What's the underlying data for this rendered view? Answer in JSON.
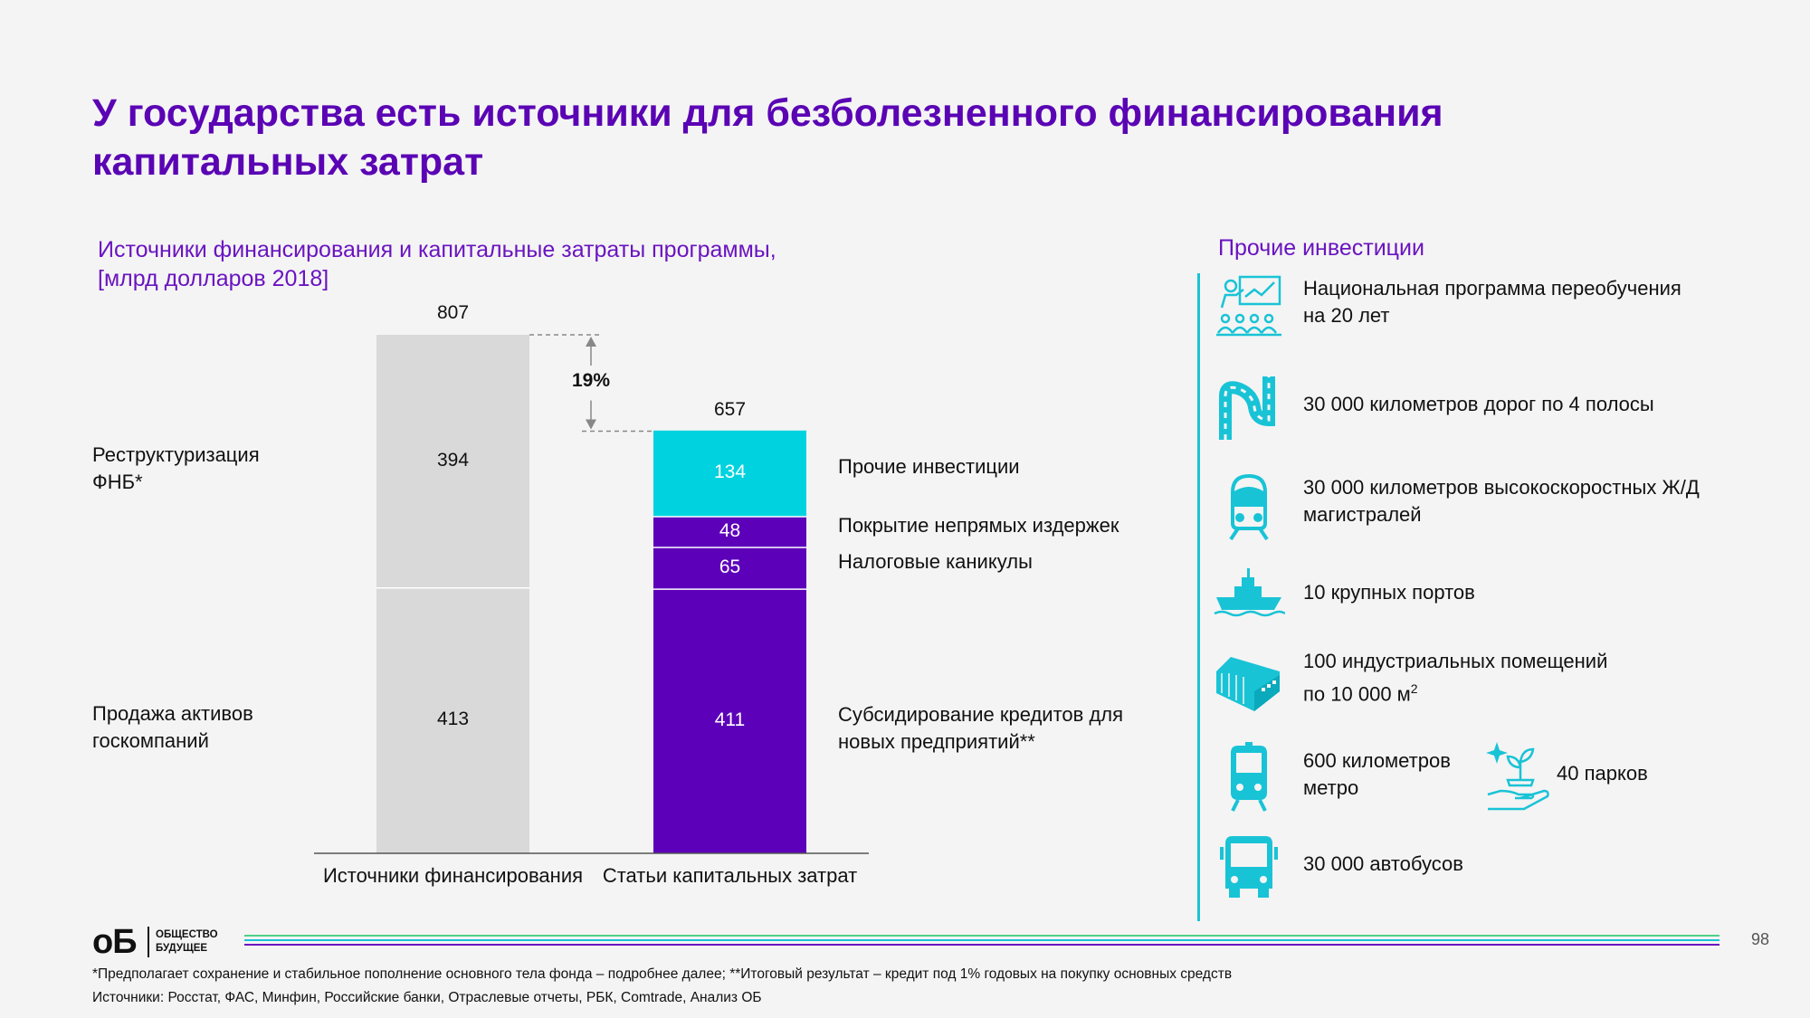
{
  "title": "У государства есть источники для безболезненного финансирования капитальных затрат",
  "chart_subtitle": "Источники финансирования и капитальные затраты программы,",
  "chart_unit": "[млрд долларов 2018]",
  "colors": {
    "gray": "#d9d9d9",
    "cyan": "#00d3df",
    "purple": "#5c00b9",
    "accent": "#5a04b4",
    "line": "#19c3d6"
  },
  "chart_data": {
    "type": "bar",
    "stacked": true,
    "categories": [
      "Источники финансирования",
      "Статьи капитальных затрат"
    ],
    "totals": [
      807,
      657
    ],
    "gap_label": "19%",
    "ylim": [
      0,
      807
    ],
    "series": [
      {
        "bar": 0,
        "label": "Продажа активов госкомпаний",
        "value": 413,
        "color": "#d9d9d9",
        "side": "left"
      },
      {
        "bar": 0,
        "label": "Реструктуризация ФНБ*",
        "value": 394,
        "color": "#d9d9d9",
        "side": "left"
      },
      {
        "bar": 1,
        "label": "Субсидирование кредитов для новых предприятий**",
        "value": 411,
        "color": "#5c00b9",
        "side": "right"
      },
      {
        "bar": 1,
        "label": "Налоговые каникулы",
        "value": 65,
        "color": "#5c00b9",
        "side": "right"
      },
      {
        "bar": 1,
        "label": "Покрытие непрямых издержек",
        "value": 48,
        "color": "#5c00b9",
        "side": "right"
      },
      {
        "bar": 1,
        "label": "Прочие инвестиции",
        "value": 134,
        "color": "#00d3df",
        "side": "right"
      }
    ]
  },
  "other_investments": {
    "title": "Прочие инвестиции",
    "items": [
      {
        "icon": "teacher-icon",
        "line1": "Национальная программа переобучения",
        "line2": "на 20 лет"
      },
      {
        "icon": "road-icon",
        "line1": "30 000 километров дорог по 4 полосы",
        "line2": ""
      },
      {
        "icon": "train-icon",
        "line1": "30 000 километров высокоскоростных Ж/Д",
        "line2": "магистралей"
      },
      {
        "icon": "ship-icon",
        "line1": "10 крупных портов",
        "line2": ""
      },
      {
        "icon": "warehouse-icon",
        "line1": "100 индустриальных помещений",
        "line2": "по 10 000 м",
        "sup": "2"
      },
      {
        "icon": "metro-icon",
        "line1": "600 километров",
        "line2": "метро"
      },
      {
        "icon": "park-icon",
        "line1": "40 парков",
        "line2": ""
      },
      {
        "icon": "bus-icon",
        "line1": "30 000 автобусов",
        "line2": ""
      }
    ]
  },
  "logo": {
    "mark": "оБ",
    "line1": "ОБЩЕСТВО",
    "line2": "БУДУЩЕЕ"
  },
  "page_number": "98",
  "footnote": "*Предполагает сохранение и стабильное пополнение основного тела фонда – подробнее далее; **Итоговый результат – кредит под 1% годовых на покупку основных средств",
  "sources": "Источники: Росстат, ФАС, Минфин, Российские банки, Отраслевые отчеты, РБК, Comtrade, Анализ ОБ"
}
